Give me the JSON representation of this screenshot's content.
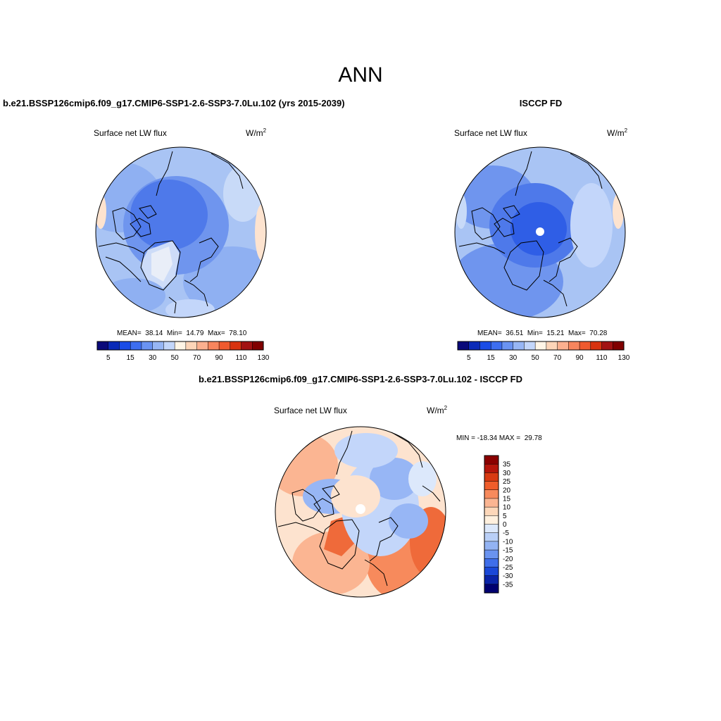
{
  "figure": {
    "title": "ANN"
  },
  "panels": [
    {
      "title": "b.e21.BSSP126cmip6.f09_g17.CMIP6-SSP1-2.6-SSP3-7.0Lu.102 (yrs 2015-2039)",
      "variable": "Surface net LW flux",
      "units": {
        "base": "W/m",
        "exp": "2"
      },
      "stats": {
        "mean_label": "MEAN=",
        "mean": "38.14",
        "min_label": "Min=",
        "min": "14.79",
        "max_label": "Max=",
        "max": "78.10"
      },
      "colorbar": {
        "ticks": [
          "5",
          "15",
          "30",
          "50",
          "70",
          "90",
          "110",
          "130"
        ],
        "colors": [
          "#0a0a7a",
          "#0a2ab8",
          "#1a4ce6",
          "#3d6ef0",
          "#6a93f2",
          "#97b6f5",
          "#c3d6fa",
          "#fff5e6",
          "#fdd5b8",
          "#fbb08f",
          "#f7855d",
          "#ef5a2e",
          "#d8330f",
          "#a21212",
          "#800000"
        ]
      }
    },
    {
      "title": "ISCCP FD",
      "variable": "Surface net LW flux",
      "units": {
        "base": "W/m",
        "exp": "2"
      },
      "stats": {
        "mean_label": "MEAN=",
        "mean": "36.51",
        "min_label": "Min=",
        "min": "15.21",
        "max_label": "Max=",
        "max": "70.28"
      },
      "colorbar": {
        "ticks": [
          "5",
          "15",
          "30",
          "50",
          "70",
          "90",
          "110",
          "130"
        ],
        "colors": [
          "#0a0a7a",
          "#0a2ab8",
          "#1a4ce6",
          "#3d6ef0",
          "#6a93f2",
          "#97b6f5",
          "#c3d6fa",
          "#fff5e6",
          "#fdd5b8",
          "#fbb08f",
          "#f7855d",
          "#ef5a2e",
          "#d8330f",
          "#a21212",
          "#800000"
        ]
      }
    },
    {
      "title": "b.e21.BSSP126cmip6.f09_g17.CMIP6-SSP1-2.6-SSP3-7.0Lu.102 - ISCCP FD",
      "variable": "Surface net LW flux",
      "units": {
        "base": "W/m",
        "exp": "2"
      },
      "stats": {
        "text": "MIN = -18.34 MAX =  29.78"
      },
      "colorbar": {
        "ticks": [
          "35",
          "30",
          "25",
          "20",
          "15",
          "10",
          "5",
          "0",
          "-5",
          "-10",
          "-15",
          "-20",
          "-25",
          "-30",
          "-35"
        ],
        "colors": [
          "#8a0000",
          "#b5150b",
          "#d83a12",
          "#ef5d2b",
          "#f78a5c",
          "#fbb592",
          "#fdd7b9",
          "#fff0de",
          "#dce8fb",
          "#b9cff7",
          "#93b3f3",
          "#6a93f0",
          "#3f6eea",
          "#1a48d8",
          "#0a24a8",
          "#000070"
        ]
      }
    }
  ]
}
